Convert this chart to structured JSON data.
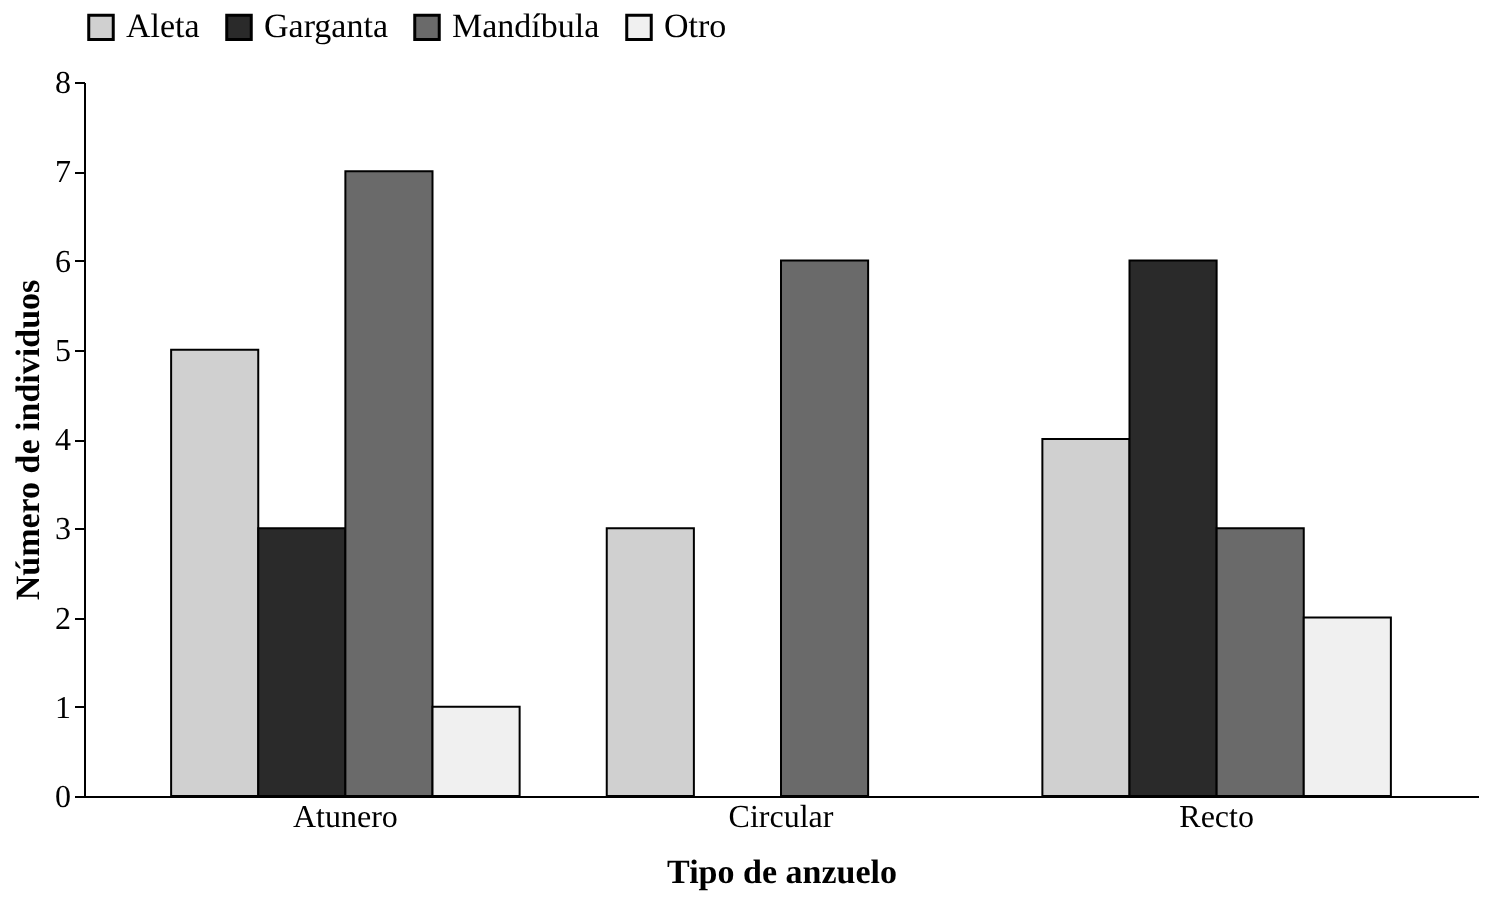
{
  "chart_data": {
    "type": "bar",
    "xlabel": "Tipo de anzuelo",
    "ylabel": "Número de individuos",
    "categories": [
      "Atunero",
      "Circular",
      "Recto"
    ],
    "series": [
      {
        "name": "Aleta",
        "color": "#d0d0d0",
        "values": [
          5,
          3,
          4
        ]
      },
      {
        "name": "Garganta",
        "color": "#2a2a2a",
        "values": [
          3,
          null,
          6
        ]
      },
      {
        "name": "Mandíbula",
        "color": "#6a6a6a",
        "values": [
          7,
          6,
          3
        ]
      },
      {
        "name": "Otro",
        "color": "#f0f0f0",
        "values": [
          1,
          null,
          2
        ]
      }
    ],
    "ylim": [
      0,
      8
    ],
    "yticks": [
      0,
      1,
      2,
      3,
      4,
      5,
      6,
      7,
      8
    ],
    "grid": false,
    "legend": "top"
  }
}
